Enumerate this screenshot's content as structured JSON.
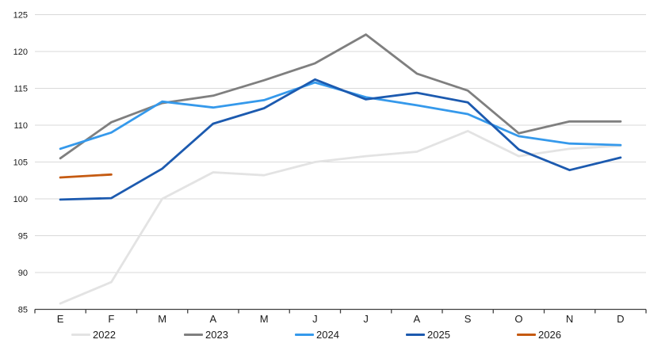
{
  "chart_data": {
    "type": "line",
    "title": "",
    "xlabel": "",
    "ylabel": "",
    "categories": [
      "E",
      "F",
      "M",
      "A",
      "M",
      "J",
      "J",
      "A",
      "S",
      "O",
      "N",
      "D"
    ],
    "yticks": [
      85,
      90,
      95,
      100,
      105,
      110,
      115,
      120,
      125
    ],
    "ylim": [
      85,
      125
    ],
    "grid": true,
    "legend_position": "bottom",
    "series": [
      {
        "name": "2022",
        "color": "#E3E3E3",
        "values": [
          85.8,
          88.7,
          100.0,
          103.6,
          103.2,
          105.0,
          105.8,
          106.4,
          109.2,
          105.8,
          106.8,
          107.2
        ]
      },
      {
        "name": "2023",
        "color": "#7F7F7F",
        "values": [
          105.5,
          110.4,
          113.0,
          114.0,
          116.1,
          118.4,
          122.3,
          117.0,
          114.7,
          108.9,
          110.5,
          110.5
        ]
      },
      {
        "name": "2024",
        "color": "#3599EB",
        "values": [
          106.8,
          109.0,
          113.2,
          112.4,
          113.4,
          115.8,
          113.8,
          112.7,
          111.5,
          108.5,
          107.5,
          107.3
        ]
      },
      {
        "name": "2025",
        "color": "#1C5AAF",
        "values": [
          99.9,
          100.1,
          104.1,
          110.2,
          112.3,
          116.2,
          113.5,
          114.4,
          113.1,
          106.7,
          103.9,
          105.6
        ]
      },
      {
        "name": "2026",
        "color": "#C55A11",
        "values": [
          102.9,
          103.3,
          null,
          null,
          null,
          null,
          null,
          null,
          null,
          null,
          null,
          null
        ]
      }
    ],
    "gridline_color": "#D9D9D9",
    "axis_color": "#404040"
  }
}
